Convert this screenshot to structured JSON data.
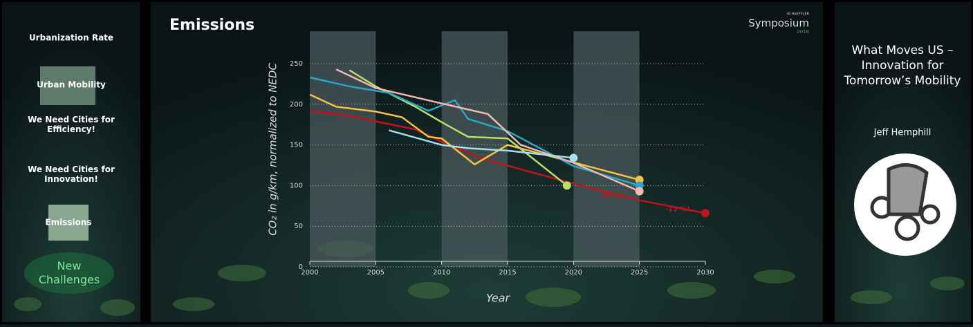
{
  "sidebar": {
    "items": [
      "Urbanization Rate",
      "Urban Mobility",
      "We Need Cities for Efficiency!",
      "We Need Cities for Innovation!",
      "Emissions"
    ],
    "current": "New Challenges"
  },
  "logo": {
    "brand": "SCHAEFFLER",
    "name": "Symposium",
    "year": "2018"
  },
  "right_panel": {
    "title": "What Moves US – Innovation for Tomorrow’s Mobility",
    "speaker": "Jeff Hemphill"
  },
  "chart_data": {
    "type": "line",
    "title": "Emissions",
    "x_label": "Year",
    "y_label": "CO₂ in g/km, normalized to NEDC",
    "xlim": [
      2000,
      2030
    ],
    "xticks": [
      2000,
      2005,
      2010,
      2015,
      2020,
      2025,
      2030
    ],
    "ylim": [
      0,
      290
    ],
    "yticks": [
      0,
      50,
      100,
      150,
      200,
      250
    ],
    "grid": true,
    "series": [
      {
        "color": "#c0141c",
        "x": [
          2000,
          2003,
          2005,
          2008,
          2010,
          2013,
          2016,
          2018.5,
          2020.8,
          2025,
          2030
        ],
        "values": [
          192,
          186,
          179,
          169,
          154,
          134,
          120,
          109,
          99,
          82,
          66
        ]
      },
      {
        "color": "#f5c342",
        "x": [
          2000,
          2002,
          2005,
          2007,
          2009,
          2010,
          2012.5,
          2015,
          2025
        ],
        "values": [
          212,
          197,
          191,
          184,
          160,
          158,
          126,
          150,
          107
        ]
      },
      {
        "color": "#b8e068",
        "x": [
          2003,
          2005,
          2008,
          2010,
          2012,
          2015,
          2019.5
        ],
        "values": [
          242,
          222,
          197,
          178,
          160,
          158,
          100
        ]
      },
      {
        "color": "#2aa7c9",
        "x": [
          2000,
          2003,
          2006,
          2009,
          2011,
          2012,
          2015,
          2020,
          2025
        ],
        "values": [
          233,
          222,
          214,
          192,
          205,
          182,
          167,
          124,
          100
        ]
      },
      {
        "color": "#f2b8b0",
        "x": [
          2002,
          2005,
          2010,
          2013.5,
          2016,
          2020,
          2025
        ],
        "values": [
          243,
          220,
          201,
          188,
          150,
          128,
          93
        ]
      },
      {
        "color": "#a6def2",
        "x": [
          2006,
          2010,
          2012,
          2015,
          2020
        ],
        "values": [
          168,
          150,
          146,
          143,
          134
        ]
      }
    ],
    "annotations": [
      "-15 %!",
      "-15 %!"
    ]
  }
}
